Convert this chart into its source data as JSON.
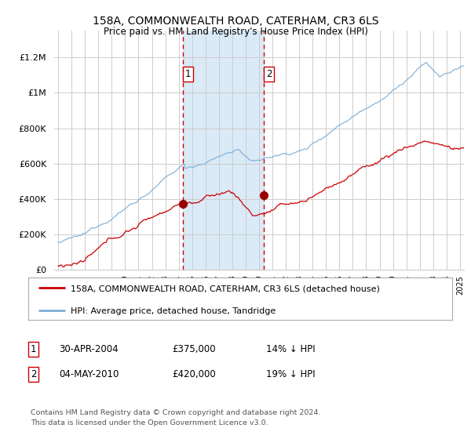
{
  "title": "158A, COMMONWEALTH ROAD, CATERHAM, CR3 6LS",
  "subtitle": "Price paid vs. HM Land Registry's House Price Index (HPI)",
  "ylabel_ticks": [
    "£0",
    "£200K",
    "£400K",
    "£600K",
    "£800K",
    "£1M",
    "£1.2M"
  ],
  "ytick_values": [
    0,
    200000,
    400000,
    600000,
    800000,
    1000000,
    1200000
  ],
  "ylim": [
    0,
    1350000
  ],
  "xlim_start": 1994.7,
  "xlim_end": 2025.3,
  "sale1_date": 2004.33,
  "sale1_price": 375000,
  "sale2_date": 2010.37,
  "sale2_price": 420000,
  "line_color_house": "#cc0000",
  "line_color_hpi": "#7dadd4",
  "shaded_color": "#daeaf7",
  "dashed_color": "#cc0000",
  "legend_house": "158A, COMMONWEALTH ROAD, CATERHAM, CR3 6LS (detached house)",
  "legend_hpi": "HPI: Average price, detached house, Tandridge",
  "footer": "Contains HM Land Registry data © Crown copyright and database right 2024.\nThis data is licensed under the Open Government Licence v3.0.",
  "table_row1": [
    "1",
    "30-APR-2004",
    "£375,000",
    "14% ↓ HPI"
  ],
  "table_row2": [
    "2",
    "04-MAY-2010",
    "£420,000",
    "19% ↓ HPI"
  ],
  "background_color": "#ffffff",
  "grid_color": "#cccccc"
}
